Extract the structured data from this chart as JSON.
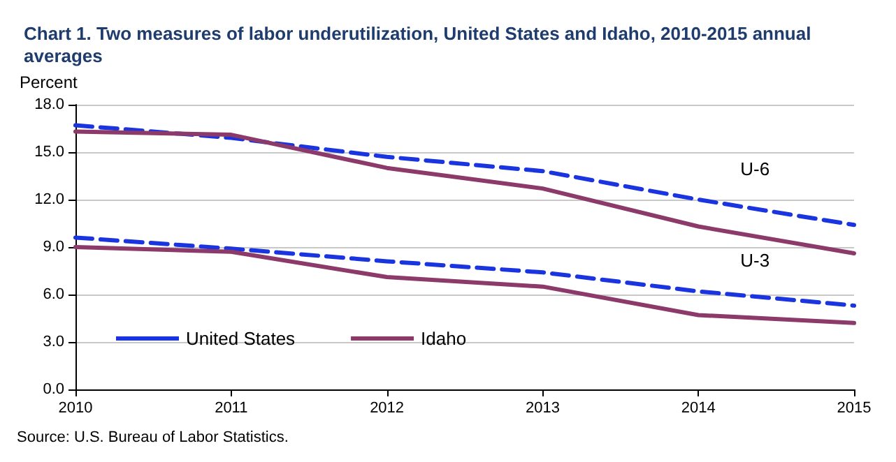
{
  "chart_data": {
    "type": "line",
    "title": "Chart 1. Two measures of labor underutilization, United States and Idaho, 2010-2015 annual averages",
    "ylabel": "Percent",
    "x": [
      2010,
      2011,
      2012,
      2013,
      2014,
      2015
    ],
    "xlim": [
      2010,
      2015
    ],
    "xticks": [
      2010,
      2011,
      2012,
      2013,
      2014,
      2015
    ],
    "ylim": [
      0,
      18
    ],
    "yticks": [
      {
        "value": 0,
        "label": "0.0"
      },
      {
        "value": 3,
        "label": "3.0"
      },
      {
        "value": 6,
        "label": "6.0"
      },
      {
        "value": 9,
        "label": "9.0"
      },
      {
        "value": 12,
        "label": "12.0"
      },
      {
        "value": 15,
        "label": "15.0"
      },
      {
        "value": 18,
        "label": "18.0"
      }
    ],
    "grid": "y",
    "legend": "bottom left",
    "marker": "none",
    "series": [
      {
        "name": "United States",
        "color": "#1a35e0",
        "line_style": "dashed",
        "values": [
          9.6,
          8.9,
          8.1,
          7.4,
          6.2,
          5.3
        ]
      },
      {
        "name": "Idaho",
        "color": "#8c3a6a",
        "line_style": "solid",
        "values": [
          9.0,
          8.7,
          7.1,
          6.5,
          4.7,
          4.2
        ]
      },
      {
        "color": "#1a35e0",
        "line_style": "dashed",
        "values": [
          16.7,
          15.9,
          14.7,
          13.8,
          12.0,
          10.4
        ]
      },
      {
        "color": "#8c3a6a",
        "line_style": "solid",
        "values": [
          16.3,
          16.1,
          14.0,
          12.7,
          10.3,
          8.6
        ]
      }
    ],
    "annotations": [
      {
        "text": "U-6",
        "x": 2014,
        "y": 12.0
      },
      {
        "text": "U-3",
        "x": 2014,
        "y": 6.2
      },
      "Source: U.S. Bureau of Labor Statistics."
    ]
  }
}
